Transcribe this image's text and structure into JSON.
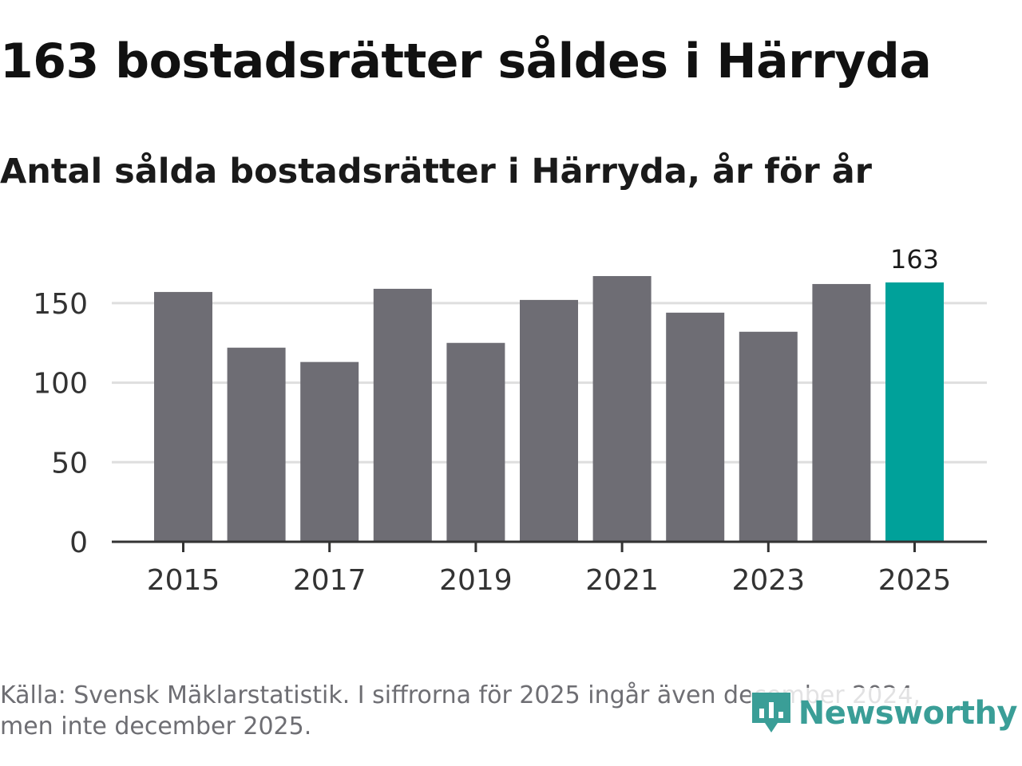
{
  "header": {
    "title": "163 bostadsrätter såldes i Härryda",
    "subtitle": "Antal sålda bostadsrätter i Härryda, år för år"
  },
  "footer": {
    "source_line1": "Källa: Svensk Mäklarstatistik. I siffrorna för 2025 ingår även december 2024,",
    "source_line2": "men inte december 2025.",
    "brand": "Newsworthy"
  },
  "colors": {
    "bar": "#6e6d74",
    "highlight": "#00a19a",
    "grid": "#dedede",
    "axis": "#333333",
    "text": "#333333",
    "brand": "#3a9e97"
  },
  "chart_data": {
    "type": "bar",
    "title": "163 bostadsrätter såldes i Härryda",
    "subtitle": "Antal sålda bostadsrätter i Härryda, år för år",
    "xlabel": "",
    "ylabel": "",
    "categories": [
      "2015",
      "2016",
      "2017",
      "2018",
      "2019",
      "2020",
      "2021",
      "2022",
      "2023",
      "2024",
      "2025"
    ],
    "values": [
      157,
      122,
      113,
      159,
      125,
      152,
      167,
      144,
      132,
      162,
      163
    ],
    "highlight_index": 10,
    "data_labels": [
      {
        "index": 10,
        "text": "163"
      }
    ],
    "yticks": [
      0,
      50,
      100,
      150
    ],
    "xtick_labels": [
      "2015",
      "2017",
      "2019",
      "2021",
      "2023",
      "2025"
    ],
    "ylim": [
      0,
      170
    ],
    "grid": true,
    "legend": "none"
  }
}
